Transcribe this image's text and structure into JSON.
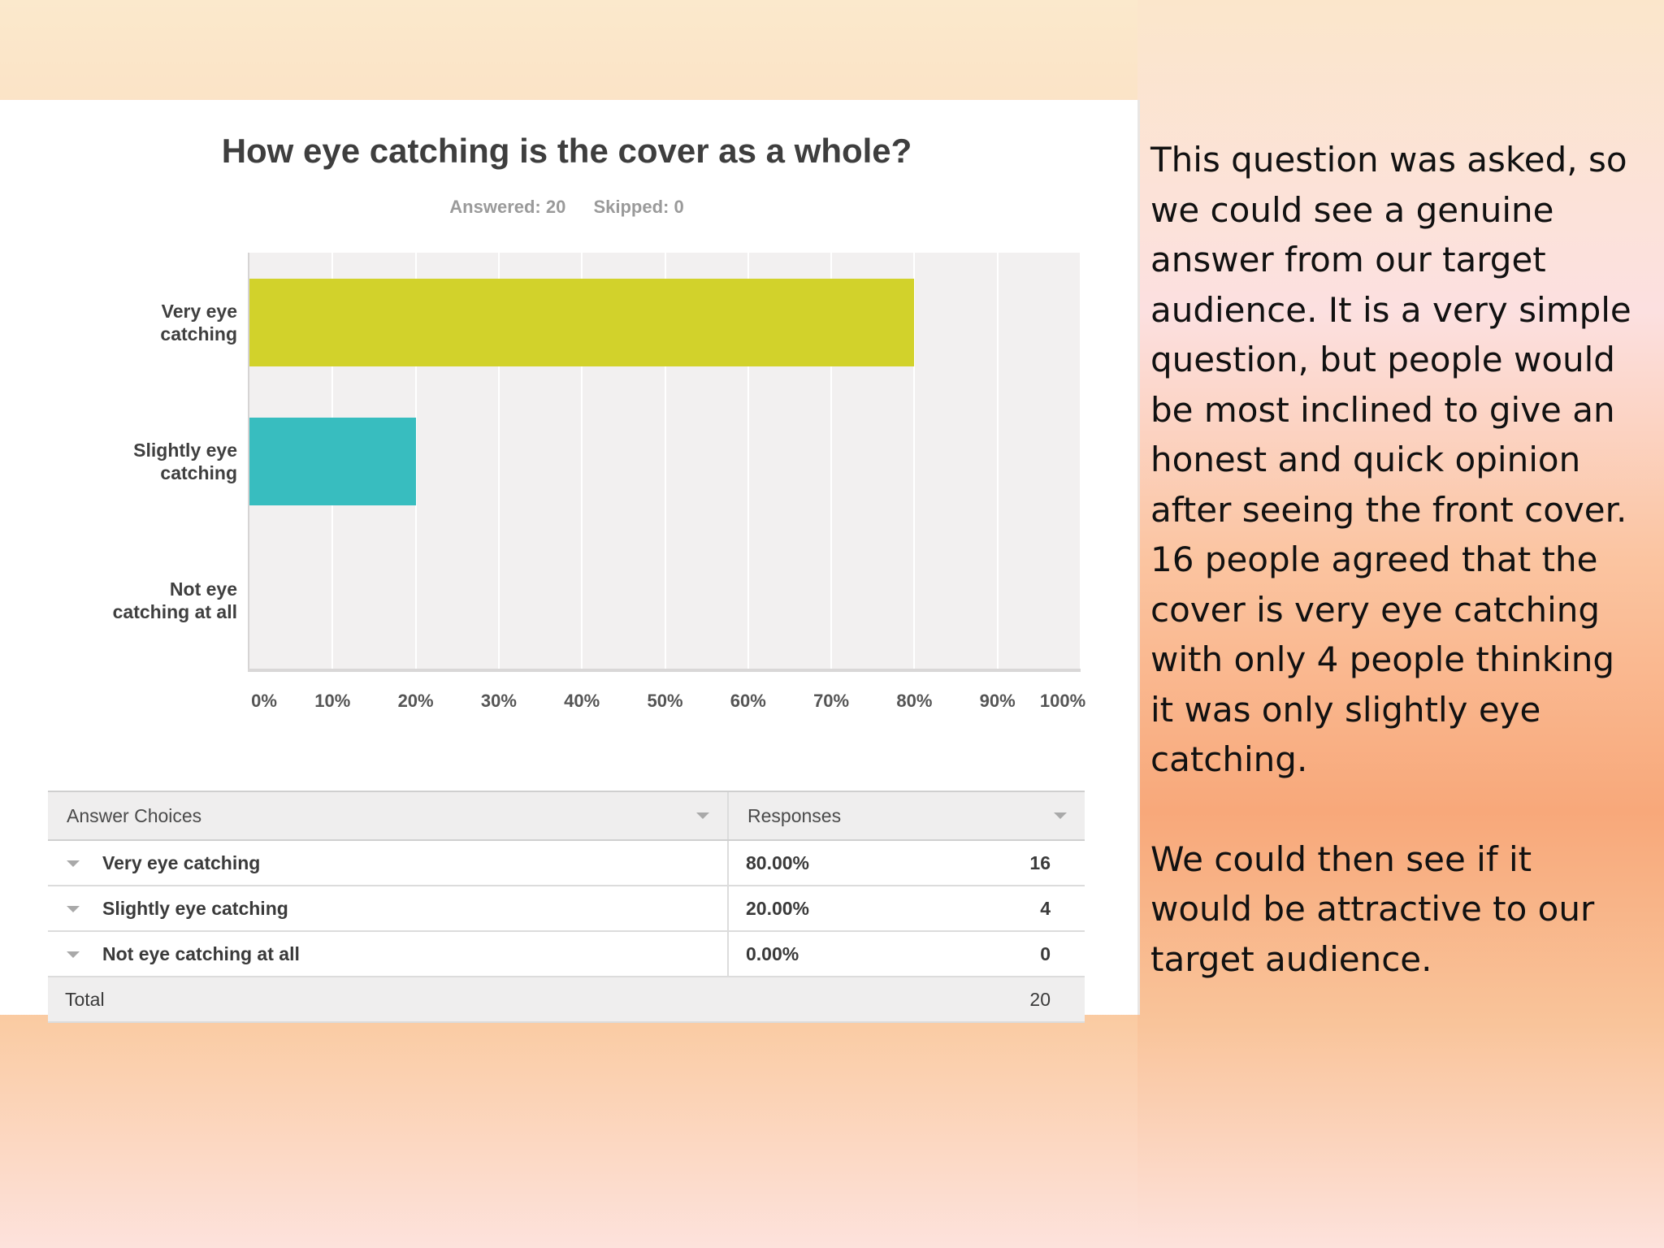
{
  "chart_data": {
    "type": "bar",
    "orientation": "horizontal",
    "title": "How eye catching is the cover as a whole?",
    "answered_label": "Answered: 20",
    "skipped_label": "Skipped: 0",
    "categories": [
      "Very eye catching",
      "Slightly eye catching",
      "Not eye catching at all"
    ],
    "category_lines": [
      [
        "Very eye",
        "catching"
      ],
      [
        "Slightly eye",
        "catching"
      ],
      [
        "Not eye",
        "catching at all"
      ]
    ],
    "values": [
      80,
      20,
      0
    ],
    "colors": [
      "#d2d22b",
      "#38bdbf",
      "#a9a9a9"
    ],
    "xlim": [
      0,
      100
    ],
    "x_ticks": [
      "0%",
      "10%",
      "20%",
      "30%",
      "40%",
      "50%",
      "60%",
      "70%",
      "80%",
      "90%",
      "100%"
    ],
    "grid": true
  },
  "table": {
    "header_choices": "Answer Choices",
    "header_responses": "Responses",
    "rows": [
      {
        "choice": "Very eye catching",
        "percent": "80.00%",
        "count": "16"
      },
      {
        "choice": "Slightly eye catching",
        "percent": "20.00%",
        "count": "4"
      },
      {
        "choice": "Not eye catching at all",
        "percent": "0.00%",
        "count": "0"
      }
    ],
    "total_label": "Total",
    "total_count": "20"
  },
  "description": {
    "paragraph1": "This question was asked, so we could see a genuine answer from our target audience. It is a very simple question, but people would be most inclined to give an honest and quick opinion after seeing the front cover. 16 people agreed that the cover is very eye catching with only 4 people thinking it was only slightly eye catching.",
    "paragraph2": "We could then see if it would be attractive to our target audience."
  }
}
